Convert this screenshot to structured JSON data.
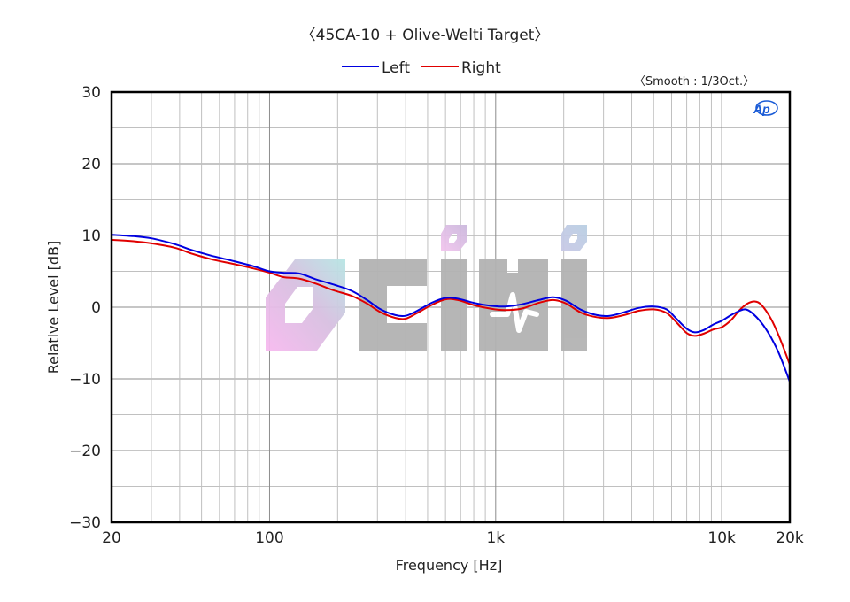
{
  "chart_data": {
    "type": "line",
    "title": "〈45CA-10 + Olive-Welti Target〉",
    "subtitle": "〈Smooth : 1/3Oct.〉",
    "xlabel": "Frequency [Hz]",
    "ylabel": "Relative Level [dB]",
    "xscale": "log",
    "xlim": [
      20,
      20000
    ],
    "ylim": [
      -30,
      30
    ],
    "x_ticks": [
      {
        "value": 20,
        "label": "20"
      },
      {
        "value": 100,
        "label": "100"
      },
      {
        "value": 1000,
        "label": "1k"
      },
      {
        "value": 10000,
        "label": "10k"
      },
      {
        "value": 20000,
        "label": "20k"
      }
    ],
    "y_ticks": [
      {
        "value": 30,
        "label": "30"
      },
      {
        "value": 20,
        "label": "20"
      },
      {
        "value": 10,
        "label": "10"
      },
      {
        "value": 0,
        "label": "0"
      },
      {
        "value": -10,
        "label": "−10"
      },
      {
        "value": -20,
        "label": "−20"
      },
      {
        "value": -30,
        "label": "−30"
      }
    ],
    "grid": true,
    "legend_position": "top-center",
    "series": [
      {
        "name": "Left",
        "color": "#0000e0",
        "points": [
          [
            20,
            10.1
          ],
          [
            25,
            9.9
          ],
          [
            30,
            9.6
          ],
          [
            38,
            8.8
          ],
          [
            45,
            8.0
          ],
          [
            55,
            7.2
          ],
          [
            70,
            6.4
          ],
          [
            85,
            5.7
          ],
          [
            100,
            5.0
          ],
          [
            115,
            4.8
          ],
          [
            135,
            4.7
          ],
          [
            160,
            3.9
          ],
          [
            190,
            3.2
          ],
          [
            230,
            2.3
          ],
          [
            270,
            1.0
          ],
          [
            310,
            -0.3
          ],
          [
            360,
            -1.1
          ],
          [
            400,
            -1.2
          ],
          [
            450,
            -0.5
          ],
          [
            520,
            0.6
          ],
          [
            600,
            1.3
          ],
          [
            680,
            1.2
          ],
          [
            800,
            0.6
          ],
          [
            950,
            0.2
          ],
          [
            1100,
            0.1
          ],
          [
            1300,
            0.4
          ],
          [
            1550,
            1.0
          ],
          [
            1800,
            1.4
          ],
          [
            2050,
            0.9
          ],
          [
            2400,
            -0.4
          ],
          [
            2800,
            -1.1
          ],
          [
            3200,
            -1.2
          ],
          [
            3700,
            -0.7
          ],
          [
            4300,
            -0.1
          ],
          [
            5000,
            0.1
          ],
          [
            5700,
            -0.3
          ],
          [
            6300,
            -1.6
          ],
          [
            7000,
            -3.0
          ],
          [
            7600,
            -3.5
          ],
          [
            8300,
            -3.2
          ],
          [
            9200,
            -2.4
          ],
          [
            10000,
            -1.9
          ],
          [
            11000,
            -1.1
          ],
          [
            12000,
            -0.5
          ],
          [
            12700,
            -0.3
          ],
          [
            13500,
            -0.7
          ],
          [
            15000,
            -2.2
          ],
          [
            16500,
            -4.2
          ],
          [
            18000,
            -6.6
          ],
          [
            20000,
            -10.4
          ]
        ]
      },
      {
        "name": "Right",
        "color": "#e00000",
        "points": [
          [
            20,
            9.4
          ],
          [
            25,
            9.2
          ],
          [
            30,
            8.9
          ],
          [
            38,
            8.3
          ],
          [
            45,
            7.5
          ],
          [
            55,
            6.7
          ],
          [
            70,
            6.0
          ],
          [
            85,
            5.4
          ],
          [
            100,
            4.8
          ],
          [
            115,
            4.2
          ],
          [
            135,
            4.0
          ],
          [
            160,
            3.3
          ],
          [
            190,
            2.4
          ],
          [
            230,
            1.6
          ],
          [
            270,
            0.5
          ],
          [
            310,
            -0.7
          ],
          [
            360,
            -1.5
          ],
          [
            400,
            -1.6
          ],
          [
            450,
            -0.8
          ],
          [
            520,
            0.3
          ],
          [
            600,
            1.1
          ],
          [
            680,
            1.0
          ],
          [
            800,
            0.3
          ],
          [
            950,
            -0.2
          ],
          [
            1100,
            -0.4
          ],
          [
            1300,
            -0.2
          ],
          [
            1550,
            0.6
          ],
          [
            1800,
            1.0
          ],
          [
            2050,
            0.5
          ],
          [
            2400,
            -0.8
          ],
          [
            2800,
            -1.4
          ],
          [
            3200,
            -1.5
          ],
          [
            3700,
            -1.1
          ],
          [
            4300,
            -0.5
          ],
          [
            5000,
            -0.3
          ],
          [
            5700,
            -0.8
          ],
          [
            6300,
            -2.1
          ],
          [
            7000,
            -3.6
          ],
          [
            7600,
            -4.0
          ],
          [
            8300,
            -3.7
          ],
          [
            9200,
            -3.1
          ],
          [
            10000,
            -2.8
          ],
          [
            11000,
            -1.8
          ],
          [
            12000,
            -0.4
          ],
          [
            13000,
            0.5
          ],
          [
            14000,
            0.8
          ],
          [
            15000,
            0.3
          ],
          [
            16500,
            -1.6
          ],
          [
            18000,
            -4.2
          ],
          [
            20000,
            -8.0
          ]
        ]
      }
    ]
  },
  "header": {
    "title": "〈45CA-10 + Olive-Welti Target〉",
    "smooth_label": "〈Smooth : 1/3Oct.〉"
  },
  "legend": {
    "items": [
      {
        "label": "Left",
        "color": "#0000e0"
      },
      {
        "label": "Right",
        "color": "#e00000"
      }
    ]
  },
  "badges": {
    "ap_logo": "AP"
  },
  "style": {
    "major_grid": "#8c8c8c",
    "minor_grid": "#c0c0c0",
    "frame": "#000000"
  }
}
